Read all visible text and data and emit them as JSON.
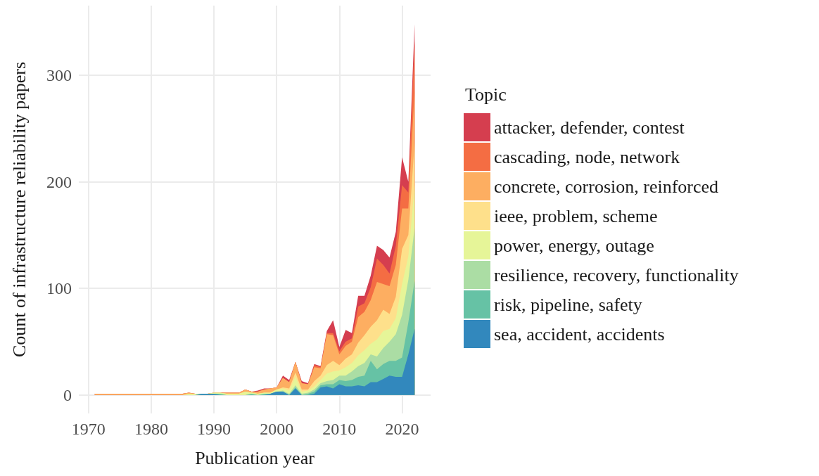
{
  "chart_data": {
    "type": "area",
    "stacked": true,
    "xlabel": "Publication year",
    "ylabel": "Count of infrastructure reliability papers",
    "legend_title": "Topic",
    "legend": "right",
    "grid": true,
    "x": [
      1971,
      1972,
      1973,
      1974,
      1975,
      1976,
      1977,
      1978,
      1979,
      1980,
      1981,
      1982,
      1983,
      1984,
      1985,
      1986,
      1987,
      1988,
      1989,
      1990,
      1991,
      1992,
      1993,
      1994,
      1995,
      1996,
      1997,
      1998,
      1999,
      2000,
      2001,
      2002,
      2003,
      2004,
      2005,
      2006,
      2007,
      2008,
      2009,
      2010,
      2011,
      2012,
      2013,
      2014,
      2015,
      2016,
      2017,
      2018,
      2019,
      2020,
      2021,
      2022
    ],
    "xlim": [
      1968.45,
      2024.55
    ],
    "xticks": [
      1970,
      1980,
      1990,
      2000,
      2010,
      2020
    ],
    "ylim": [
      -17.4,
      365.4
    ],
    "yticks": [
      0,
      100,
      200,
      300
    ],
    "series": [
      {
        "name": "sea, accident, accidents",
        "color": "#3288bd",
        "values": [
          0,
          0,
          0,
          0,
          0,
          0,
          0,
          0,
          0,
          0,
          0,
          0,
          0,
          0,
          0,
          0,
          0,
          1,
          1,
          1,
          0,
          0,
          0,
          0,
          0,
          0,
          0,
          0,
          1,
          3,
          3,
          0,
          6,
          0,
          0,
          1,
          7,
          8,
          6,
          10,
          8,
          8,
          9,
          8,
          12,
          12,
          15,
          18,
          17,
          17,
          38,
          62
        ]
      },
      {
        "name": "risk, pipeline, safety",
        "color": "#66c2a5",
        "values": [
          0,
          0,
          0,
          0,
          0,
          0,
          0,
          0,
          0,
          0,
          0,
          0,
          0,
          0,
          0,
          0,
          0,
          0,
          0,
          0,
          1,
          0,
          0,
          0,
          0,
          1,
          0,
          1,
          0,
          0,
          0,
          0,
          1,
          0,
          1,
          2,
          2,
          2,
          4,
          4,
          5,
          6,
          8,
          10,
          20,
          12,
          14,
          14,
          15,
          18,
          30,
          45
        ]
      },
      {
        "name": "resilience, recovery, functionality",
        "color": "#abdda4",
        "values": [
          0,
          0,
          0,
          0,
          0,
          0,
          0,
          0,
          0,
          0,
          0,
          0,
          0,
          0,
          0,
          0,
          0,
          0,
          0,
          0,
          0,
          0,
          0,
          0,
          0,
          0,
          0,
          0,
          0,
          0,
          1,
          1,
          2,
          1,
          1,
          2,
          2,
          3,
          4,
          4,
          5,
          8,
          10,
          12,
          6,
          12,
          15,
          18,
          25,
          40,
          40,
          50
        ]
      },
      {
        "name": "power, energy, outage",
        "color": "#e6f598",
        "values": [
          0,
          0,
          0,
          0,
          0,
          0,
          0,
          0,
          0,
          0,
          0,
          0,
          0,
          0,
          0,
          1,
          1,
          0,
          0,
          1,
          1,
          1,
          1,
          1,
          3,
          1,
          1,
          1,
          1,
          2,
          2,
          3,
          8,
          2,
          2,
          3,
          3,
          7,
          8,
          5,
          8,
          8,
          10,
          12,
          10,
          16,
          16,
          12,
          15,
          29,
          22,
          40
        ]
      },
      {
        "name": "ieee, problem, scheme",
        "color": "#fee08b",
        "values": [
          0,
          0,
          0,
          0,
          0,
          0,
          0,
          0,
          0,
          0,
          0,
          0,
          0,
          0,
          0,
          0,
          0,
          0,
          0,
          0,
          0,
          0,
          0,
          0,
          0,
          0,
          0,
          0,
          0,
          0,
          1,
          2,
          4,
          2,
          1,
          5,
          4,
          8,
          10,
          5,
          8,
          8,
          12,
          14,
          16,
          18,
          20,
          14,
          20,
          33,
          20,
          40
        ]
      },
      {
        "name": "concrete, corrosion, reinforced",
        "color": "#fdae61",
        "values": [
          1,
          1,
          1,
          1,
          1,
          1,
          1,
          1,
          1,
          1,
          1,
          1,
          1,
          1,
          1,
          1,
          0,
          0,
          0,
          0,
          0,
          1,
          1,
          1,
          2,
          1,
          2,
          3,
          4,
          2,
          9,
          6,
          10,
          6,
          5,
          13,
          7,
          29,
          24,
          10,
          12,
          12,
          24,
          22,
          25,
          36,
          24,
          26,
          30,
          38,
          25,
          50
        ]
      },
      {
        "name": "cascading, node, network",
        "color": "#f46d43",
        "values": [
          0,
          0,
          0,
          0,
          0,
          0,
          0,
          0,
          0,
          0,
          0,
          0,
          0,
          0,
          0,
          0,
          0,
          0,
          0,
          0,
          0,
          0,
          0,
          0,
          0,
          0,
          0,
          0,
          0,
          0,
          0,
          0,
          0,
          0,
          0,
          2,
          1,
          1,
          2,
          3,
          4,
          3,
          10,
          8,
          12,
          22,
          18,
          12,
          18,
          22,
          15,
          45
        ]
      },
      {
        "name": "attacker, defender, contest",
        "color": "#d53e4f",
        "values": [
          0,
          0,
          0,
          0,
          0,
          0,
          0,
          0,
          0,
          0,
          0,
          0,
          0,
          0,
          0,
          0,
          0,
          0,
          0,
          0,
          0,
          0,
          0,
          0,
          0,
          0,
          1,
          1,
          0,
          0,
          2,
          2,
          0,
          2,
          1,
          1,
          1,
          2,
          12,
          4,
          11,
          5,
          10,
          7,
          11,
          12,
          14,
          15,
          13,
          26,
          10,
          16
        ]
      }
    ]
  }
}
